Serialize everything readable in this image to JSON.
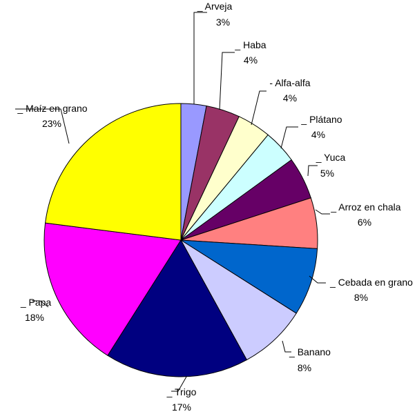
{
  "chart_data": {
    "type": "pie",
    "title": "",
    "start": "12 o'clock",
    "direction": "clockwise",
    "legend": "none",
    "slices": [
      {
        "category": "Arveja",
        "prefix": "_ ",
        "value": 3,
        "label": "3%",
        "color": "#9999ff"
      },
      {
        "category": "Haba",
        "prefix": "_ ",
        "value": 4,
        "label": "4%",
        "color": "#993366"
      },
      {
        "category": "Alfa-alfa",
        "prefix": "- ",
        "value": 4,
        "label": "4%",
        "color": "#ffffcc"
      },
      {
        "category": "Plátano",
        "prefix": "_ ",
        "value": 4,
        "label": "4%",
        "color": "#ccffff"
      },
      {
        "category": "Yuca",
        "prefix": "_ ",
        "value": 5,
        "label": "5%",
        "color": "#660066"
      },
      {
        "category": "Arroz en chala",
        "prefix": "_ ",
        "value": 6,
        "label": "6%",
        "color": "#ff8080"
      },
      {
        "category": "Cebada en grano",
        "prefix": "_ ",
        "value": 8,
        "label": "8%",
        "color": "#0066cc"
      },
      {
        "category": "Banano",
        "prefix": "_ ",
        "value": 8,
        "label": "8%",
        "color": "#ccccff"
      },
      {
        "category": "Trigo",
        "prefix": "_ ",
        "value": 17,
        "label": "17%",
        "color": "#000080"
      },
      {
        "category": "Papa",
        "prefix": "_ ",
        "value": 18,
        "label": "18%",
        "color": "#ff00ff"
      },
      {
        "category": "Maíz en grano",
        "prefix": "_ ",
        "value": 23,
        "label": "23%",
        "color": "#ffff00"
      }
    ]
  }
}
